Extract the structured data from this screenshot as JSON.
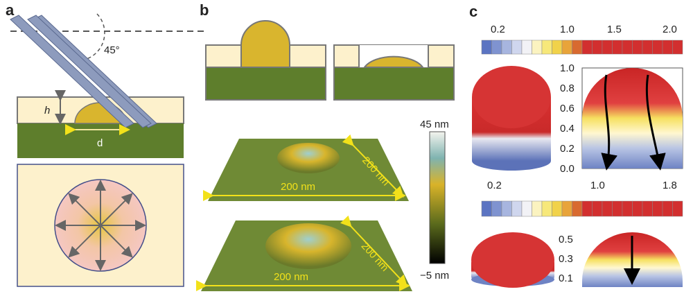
{
  "panels": {
    "a": {
      "label": "a",
      "angle": "45°",
      "height": "h",
      "width": "d"
    },
    "b": {
      "label": "b",
      "top_size_x": "200 nm",
      "top_size_y": "200 nm",
      "bottom_size_x": "200 nm",
      "bottom_size_y": "200 nm",
      "colorbar_max": "45 nm",
      "colorbar_min": "−5 nm"
    },
    "c": {
      "label": "c",
      "colorbar1_ticks": [
        "0.2",
        "1.0",
        "1.5",
        "2.0"
      ],
      "plot1_yticks": [
        "1.0",
        "0.8",
        "0.6",
        "0.4",
        "0.2",
        "0.0"
      ],
      "colorbar2_ticks": [
        "0.2",
        "1.0",
        "1.8"
      ],
      "plot2_yticks": [
        "0.5",
        "0.3",
        "0.1"
      ]
    }
  }
}
